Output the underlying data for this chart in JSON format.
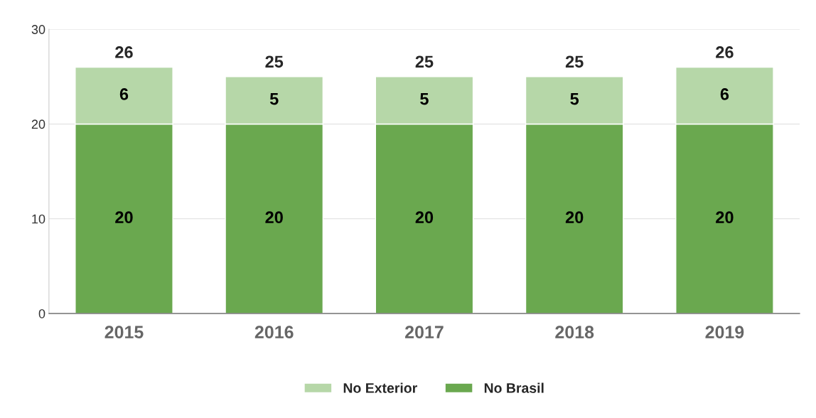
{
  "chart_data": {
    "type": "bar",
    "stacked": true,
    "categories": [
      "2015",
      "2016",
      "2017",
      "2018",
      "2019"
    ],
    "series": [
      {
        "name": "No Brasil",
        "color": "#6aa84f",
        "values": [
          20,
          20,
          20,
          20,
          20
        ]
      },
      {
        "name": "No Exterior",
        "color": "#b6d7a8",
        "values": [
          6,
          5,
          5,
          5,
          6
        ]
      }
    ],
    "totals": [
      "26",
      "25",
      "25",
      "25",
      "26"
    ],
    "data_labels": true,
    "ylim": [
      0,
      30
    ],
    "yticks": [
      0,
      10,
      20,
      30
    ],
    "grid": "y",
    "legend": "bottom"
  }
}
